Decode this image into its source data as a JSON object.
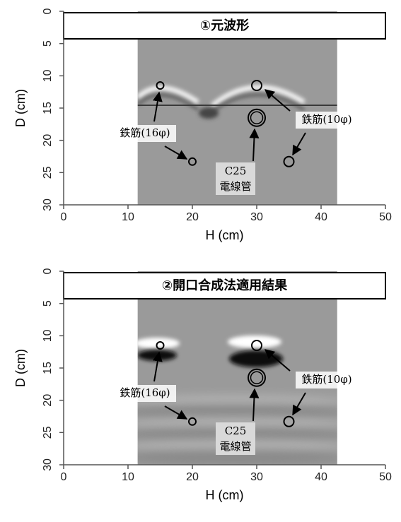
{
  "chart_data": [
    {
      "type": "scatter",
      "title": "①元波形",
      "xlabel": "H (cm)",
      "ylabel": "D (cm)",
      "xlim": [
        0,
        50
      ],
      "ylim": [
        0,
        30
      ],
      "y_inverted": true,
      "xticks": [
        0,
        10,
        20,
        30,
        40,
        50
      ],
      "yticks": [
        0,
        5,
        10,
        15,
        20,
        25,
        30
      ],
      "image_xlim": [
        11.5,
        42.5
      ],
      "series": [
        {
          "name": "鉄筋(16φ)",
          "marker": "small",
          "color": "#000000",
          "x": [
            15,
            20
          ],
          "y": [
            11.5,
            23.3
          ]
        },
        {
          "name": "鉄筋(10φ)",
          "marker": "large",
          "color": "#000000",
          "x": [
            30,
            35
          ],
          "y": [
            11.5,
            23.3
          ]
        },
        {
          "name": [
            "C25",
            "電線管"
          ],
          "marker": "double",
          "color": "#000000",
          "x": [
            30
          ],
          "y": [
            16.5
          ]
        }
      ]
    },
    {
      "type": "scatter",
      "title": "②開口合成法適用結果",
      "xlabel": "H (cm)",
      "ylabel": "D (cm)",
      "xlim": [
        0,
        50
      ],
      "ylim": [
        0,
        30
      ],
      "y_inverted": true,
      "xticks": [
        0,
        10,
        20,
        30,
        40,
        50
      ],
      "yticks": [
        0,
        5,
        10,
        15,
        20,
        25,
        30
      ],
      "image_xlim": [
        11.5,
        42.5
      ],
      "series": [
        {
          "name": "鉄筋(16φ)",
          "marker": "small",
          "color": "#000000",
          "x": [
            15,
            20
          ],
          "y": [
            11.5,
            23.3
          ]
        },
        {
          "name": "鉄筋(10φ)",
          "marker": "large",
          "color": "#000000",
          "x": [
            30,
            35
          ],
          "y": [
            11.5,
            23.3
          ]
        },
        {
          "name": [
            "C25",
            "電線管"
          ],
          "marker": "double",
          "color": "#000000",
          "x": [
            30
          ],
          "y": [
            16.5
          ]
        }
      ]
    }
  ]
}
